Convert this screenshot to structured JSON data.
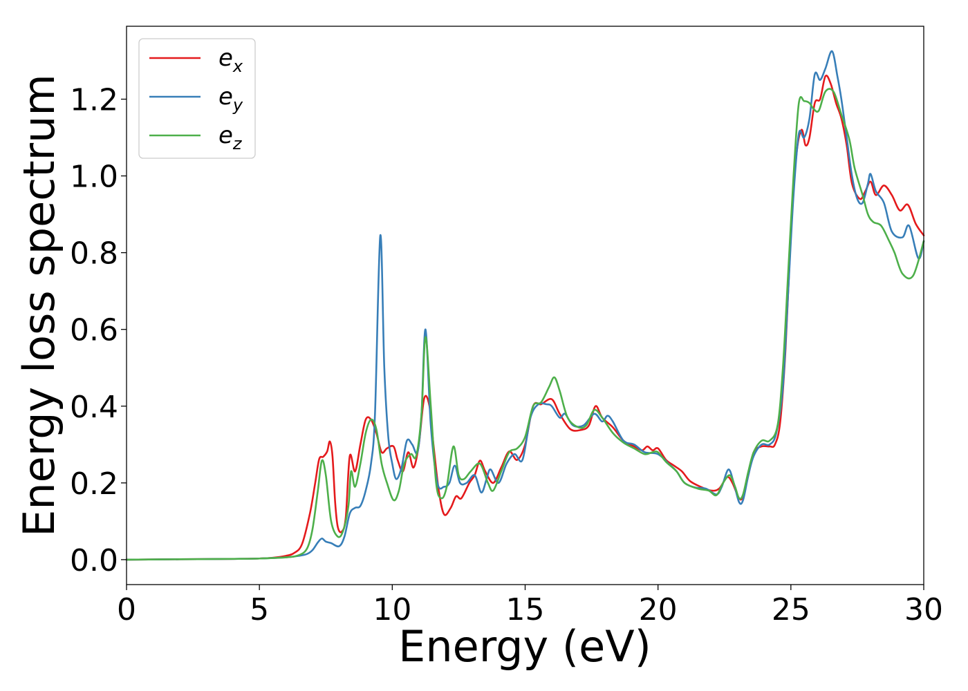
{
  "chart_data": {
    "type": "line",
    "xlabel": "Energy (eV)",
    "ylabel": "Energy loss spectrum",
    "xlim": [
      0,
      30
    ],
    "ylim": [
      -0.065,
      1.39
    ],
    "xticks": [
      0,
      5,
      10,
      15,
      20,
      25,
      30
    ],
    "xtick_labels": [
      "0",
      "5",
      "10",
      "15",
      "20",
      "25",
      "30"
    ],
    "yticks": [
      0.0,
      0.2,
      0.4,
      0.6,
      0.8,
      1.0,
      1.2
    ],
    "ytick_labels": [
      "0.0",
      "0.2",
      "0.4",
      "0.6",
      "0.8",
      "1.0",
      "1.2"
    ],
    "grid": false,
    "legend_position": "top-left",
    "series": [
      {
        "name": "e",
        "subscript": "x",
        "color": "#e41a1c",
        "points": [
          [
            0,
            0
          ],
          [
            2,
            0.001
          ],
          [
            4,
            0.002
          ],
          [
            5,
            0.003
          ],
          [
            5.5,
            0.005
          ],
          [
            6,
            0.01
          ],
          [
            6.3,
            0.017
          ],
          [
            6.6,
            0.04
          ],
          [
            6.9,
            0.12
          ],
          [
            7.1,
            0.2
          ],
          [
            7.25,
            0.262
          ],
          [
            7.4,
            0.268
          ],
          [
            7.55,
            0.282
          ],
          [
            7.65,
            0.308
          ],
          [
            7.75,
            0.27
          ],
          [
            7.85,
            0.15
          ],
          [
            7.95,
            0.085
          ],
          [
            8.1,
            0.073
          ],
          [
            8.25,
            0.11
          ],
          [
            8.4,
            0.27
          ],
          [
            8.6,
            0.23
          ],
          [
            8.8,
            0.3
          ],
          [
            9.0,
            0.365
          ],
          [
            9.2,
            0.365
          ],
          [
            9.4,
            0.33
          ],
          [
            9.6,
            0.28
          ],
          [
            9.8,
            0.29
          ],
          [
            10.05,
            0.295
          ],
          [
            10.2,
            0.26
          ],
          [
            10.4,
            0.23
          ],
          [
            10.6,
            0.28
          ],
          [
            10.8,
            0.24
          ],
          [
            11.0,
            0.3
          ],
          [
            11.2,
            0.42
          ],
          [
            11.4,
            0.4
          ],
          [
            11.55,
            0.3
          ],
          [
            11.75,
            0.18
          ],
          [
            11.95,
            0.118
          ],
          [
            12.2,
            0.135
          ],
          [
            12.4,
            0.165
          ],
          [
            12.6,
            0.16
          ],
          [
            12.9,
            0.2
          ],
          [
            13.1,
            0.22
          ],
          [
            13.3,
            0.258
          ],
          [
            13.5,
            0.23
          ],
          [
            13.8,
            0.2
          ],
          [
            14.1,
            0.24
          ],
          [
            14.4,
            0.282
          ],
          [
            14.7,
            0.26
          ],
          [
            15.0,
            0.3
          ],
          [
            15.3,
            0.4
          ],
          [
            15.6,
            0.405
          ],
          [
            16.0,
            0.418
          ],
          [
            16.3,
            0.38
          ],
          [
            16.7,
            0.34
          ],
          [
            17.1,
            0.338
          ],
          [
            17.4,
            0.35
          ],
          [
            17.65,
            0.4
          ],
          [
            17.9,
            0.37
          ],
          [
            18.3,
            0.345
          ],
          [
            18.7,
            0.31
          ],
          [
            19.1,
            0.295
          ],
          [
            19.4,
            0.285
          ],
          [
            19.6,
            0.295
          ],
          [
            19.8,
            0.285
          ],
          [
            20.0,
            0.29
          ],
          [
            20.3,
            0.26
          ],
          [
            20.6,
            0.245
          ],
          [
            20.9,
            0.23
          ],
          [
            21.2,
            0.205
          ],
          [
            21.6,
            0.19
          ],
          [
            22.0,
            0.18
          ],
          [
            22.3,
            0.185
          ],
          [
            22.6,
            0.215
          ],
          [
            22.8,
            0.2
          ],
          [
            23.05,
            0.16
          ],
          [
            23.2,
            0.165
          ],
          [
            23.4,
            0.22
          ],
          [
            23.6,
            0.28
          ],
          [
            23.9,
            0.295
          ],
          [
            24.2,
            0.295
          ],
          [
            24.4,
            0.3
          ],
          [
            24.6,
            0.36
          ],
          [
            24.8,
            0.55
          ],
          [
            25.0,
            0.85
          ],
          [
            25.2,
            1.05
          ],
          [
            25.4,
            1.12
          ],
          [
            25.55,
            1.08
          ],
          [
            25.7,
            1.1
          ],
          [
            25.9,
            1.19
          ],
          [
            26.1,
            1.2
          ],
          [
            26.3,
            1.26
          ],
          [
            26.5,
            1.24
          ],
          [
            26.7,
            1.19
          ],
          [
            26.9,
            1.15
          ],
          [
            27.1,
            1.08
          ],
          [
            27.3,
            0.98
          ],
          [
            27.6,
            0.94
          ],
          [
            27.8,
            0.96
          ],
          [
            28.0,
            0.985
          ],
          [
            28.2,
            0.95
          ],
          [
            28.5,
            0.975
          ],
          [
            28.8,
            0.95
          ],
          [
            29.1,
            0.91
          ],
          [
            29.4,
            0.925
          ],
          [
            29.7,
            0.875
          ],
          [
            30.0,
            0.845
          ]
        ]
      },
      {
        "name": "e",
        "subscript": "y",
        "color": "#377eb8",
        "points": [
          [
            0,
            0
          ],
          [
            2,
            0.001
          ],
          [
            4,
            0.002
          ],
          [
            5,
            0.003
          ],
          [
            6,
            0.006
          ],
          [
            6.5,
            0.01
          ],
          [
            6.8,
            0.015
          ],
          [
            7.0,
            0.025
          ],
          [
            7.2,
            0.045
          ],
          [
            7.35,
            0.055
          ],
          [
            7.5,
            0.047
          ],
          [
            7.7,
            0.043
          ],
          [
            8.0,
            0.035
          ],
          [
            8.2,
            0.06
          ],
          [
            8.4,
            0.12
          ],
          [
            8.6,
            0.135
          ],
          [
            8.8,
            0.14
          ],
          [
            9.0,
            0.18
          ],
          [
            9.2,
            0.25
          ],
          [
            9.35,
            0.38
          ],
          [
            9.55,
            0.845
          ],
          [
            9.7,
            0.5
          ],
          [
            9.85,
            0.32
          ],
          [
            10.0,
            0.25
          ],
          [
            10.15,
            0.21
          ],
          [
            10.35,
            0.24
          ],
          [
            10.55,
            0.31
          ],
          [
            10.75,
            0.3
          ],
          [
            10.95,
            0.28
          ],
          [
            11.1,
            0.38
          ],
          [
            11.25,
            0.6
          ],
          [
            11.45,
            0.35
          ],
          [
            11.7,
            0.2
          ],
          [
            11.95,
            0.19
          ],
          [
            12.15,
            0.2
          ],
          [
            12.35,
            0.245
          ],
          [
            12.55,
            0.2
          ],
          [
            12.8,
            0.2
          ],
          [
            13.1,
            0.22
          ],
          [
            13.35,
            0.175
          ],
          [
            13.55,
            0.21
          ],
          [
            13.7,
            0.235
          ],
          [
            14.0,
            0.2
          ],
          [
            14.3,
            0.25
          ],
          [
            14.6,
            0.275
          ],
          [
            14.9,
            0.26
          ],
          [
            15.2,
            0.37
          ],
          [
            15.5,
            0.405
          ],
          [
            15.8,
            0.405
          ],
          [
            16.0,
            0.4
          ],
          [
            16.3,
            0.37
          ],
          [
            16.5,
            0.38
          ],
          [
            16.8,
            0.35
          ],
          [
            17.2,
            0.35
          ],
          [
            17.6,
            0.38
          ],
          [
            17.9,
            0.36
          ],
          [
            18.1,
            0.375
          ],
          [
            18.3,
            0.36
          ],
          [
            18.7,
            0.31
          ],
          [
            19.1,
            0.3
          ],
          [
            19.5,
            0.28
          ],
          [
            20.0,
            0.275
          ],
          [
            20.4,
            0.25
          ],
          [
            20.7,
            0.23
          ],
          [
            21.0,
            0.2
          ],
          [
            21.4,
            0.188
          ],
          [
            21.8,
            0.185
          ],
          [
            22.2,
            0.17
          ],
          [
            22.4,
            0.19
          ],
          [
            22.65,
            0.235
          ],
          [
            22.85,
            0.2
          ],
          [
            23.05,
            0.15
          ],
          [
            23.2,
            0.155
          ],
          [
            23.4,
            0.22
          ],
          [
            23.6,
            0.27
          ],
          [
            23.9,
            0.3
          ],
          [
            24.2,
            0.3
          ],
          [
            24.45,
            0.33
          ],
          [
            24.7,
            0.45
          ],
          [
            24.9,
            0.7
          ],
          [
            25.1,
            0.95
          ],
          [
            25.3,
            1.11
          ],
          [
            25.5,
            1.1
          ],
          [
            25.7,
            1.15
          ],
          [
            25.9,
            1.265
          ],
          [
            26.1,
            1.25
          ],
          [
            26.3,
            1.28
          ],
          [
            26.55,
            1.325
          ],
          [
            26.75,
            1.26
          ],
          [
            26.9,
            1.2
          ],
          [
            27.1,
            1.1
          ],
          [
            27.3,
            1.0
          ],
          [
            27.5,
            0.94
          ],
          [
            27.7,
            0.93
          ],
          [
            27.9,
            0.98
          ],
          [
            28.0,
            1.005
          ],
          [
            28.2,
            0.96
          ],
          [
            28.5,
            0.93
          ],
          [
            28.8,
            0.855
          ],
          [
            29.2,
            0.84
          ],
          [
            29.45,
            0.87
          ],
          [
            29.8,
            0.785
          ],
          [
            30.0,
            0.83
          ]
        ]
      },
      {
        "name": "e",
        "subscript": "z",
        "color": "#4daf4a",
        "points": [
          [
            0,
            0
          ],
          [
            2,
            0.001
          ],
          [
            4,
            0.002
          ],
          [
            5,
            0.003
          ],
          [
            6,
            0.006
          ],
          [
            6.5,
            0.012
          ],
          [
            6.8,
            0.03
          ],
          [
            7.0,
            0.08
          ],
          [
            7.2,
            0.18
          ],
          [
            7.35,
            0.258
          ],
          [
            7.5,
            0.22
          ],
          [
            7.7,
            0.1
          ],
          [
            7.95,
            0.06
          ],
          [
            8.15,
            0.075
          ],
          [
            8.35,
            0.14
          ],
          [
            8.45,
            0.23
          ],
          [
            8.6,
            0.19
          ],
          [
            8.8,
            0.25
          ],
          [
            9.0,
            0.33
          ],
          [
            9.2,
            0.365
          ],
          [
            9.4,
            0.34
          ],
          [
            9.6,
            0.25
          ],
          [
            9.8,
            0.2
          ],
          [
            10.05,
            0.155
          ],
          [
            10.25,
            0.18
          ],
          [
            10.45,
            0.25
          ],
          [
            10.7,
            0.275
          ],
          [
            10.9,
            0.27
          ],
          [
            11.1,
            0.38
          ],
          [
            11.25,
            0.58
          ],
          [
            11.45,
            0.4
          ],
          [
            11.65,
            0.2
          ],
          [
            11.85,
            0.16
          ],
          [
            12.05,
            0.19
          ],
          [
            12.3,
            0.295
          ],
          [
            12.5,
            0.22
          ],
          [
            12.7,
            0.21
          ],
          [
            12.95,
            0.23
          ],
          [
            13.3,
            0.25
          ],
          [
            13.6,
            0.2
          ],
          [
            13.8,
            0.18
          ],
          [
            14.1,
            0.23
          ],
          [
            14.4,
            0.28
          ],
          [
            14.7,
            0.29
          ],
          [
            15.0,
            0.32
          ],
          [
            15.3,
            0.4
          ],
          [
            15.6,
            0.41
          ],
          [
            15.9,
            0.45
          ],
          [
            16.1,
            0.475
          ],
          [
            16.3,
            0.44
          ],
          [
            16.6,
            0.37
          ],
          [
            17.0,
            0.345
          ],
          [
            17.3,
            0.35
          ],
          [
            17.6,
            0.39
          ],
          [
            17.9,
            0.37
          ],
          [
            18.3,
            0.33
          ],
          [
            18.7,
            0.305
          ],
          [
            19.1,
            0.29
          ],
          [
            19.5,
            0.275
          ],
          [
            19.8,
            0.28
          ],
          [
            20.0,
            0.28
          ],
          [
            20.3,
            0.255
          ],
          [
            20.7,
            0.23
          ],
          [
            21.0,
            0.2
          ],
          [
            21.5,
            0.185
          ],
          [
            21.9,
            0.18
          ],
          [
            22.2,
            0.168
          ],
          [
            22.45,
            0.2
          ],
          [
            22.7,
            0.22
          ],
          [
            22.9,
            0.19
          ],
          [
            23.05,
            0.16
          ],
          [
            23.2,
            0.17
          ],
          [
            23.4,
            0.23
          ],
          [
            23.6,
            0.28
          ],
          [
            23.9,
            0.31
          ],
          [
            24.2,
            0.31
          ],
          [
            24.5,
            0.35
          ],
          [
            24.7,
            0.5
          ],
          [
            24.9,
            0.75
          ],
          [
            25.1,
            1.0
          ],
          [
            25.3,
            1.19
          ],
          [
            25.5,
            1.195
          ],
          [
            25.7,
            1.19
          ],
          [
            25.85,
            1.175
          ],
          [
            26.05,
            1.17
          ],
          [
            26.3,
            1.22
          ],
          [
            26.6,
            1.22
          ],
          [
            26.9,
            1.16
          ],
          [
            27.2,
            1.095
          ],
          [
            27.4,
            1.02
          ],
          [
            27.7,
            0.95
          ],
          [
            27.9,
            0.9
          ],
          [
            28.1,
            0.88
          ],
          [
            28.4,
            0.87
          ],
          [
            28.7,
            0.83
          ],
          [
            28.9,
            0.8
          ],
          [
            29.2,
            0.745
          ],
          [
            29.6,
            0.74
          ],
          [
            30.0,
            0.83
          ]
        ]
      }
    ]
  }
}
